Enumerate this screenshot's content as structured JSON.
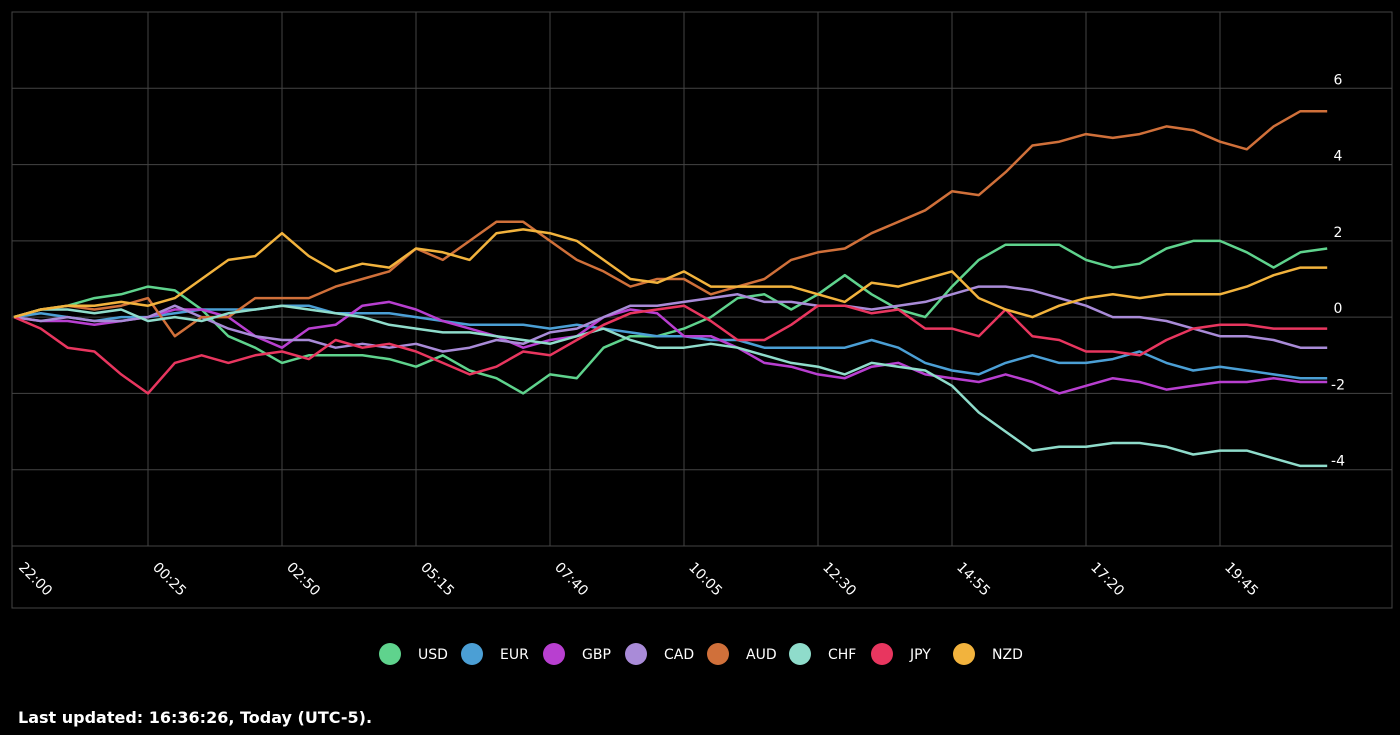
{
  "chart_data": {
    "type": "line",
    "categories": [
      "22:00",
      null,
      null,
      null,
      null,
      "00:25",
      null,
      null,
      null,
      null,
      "02:50",
      null,
      null,
      null,
      null,
      "05:15",
      null,
      null,
      null,
      null,
      "07:40",
      null,
      null,
      null,
      null,
      "10:05",
      null,
      null,
      null,
      null,
      "12:30",
      null,
      null,
      null,
      null,
      "14:55",
      null,
      null,
      null,
      null,
      "17:20",
      null,
      null,
      null,
      null,
      "19:45",
      null,
      null,
      null,
      null
    ],
    "ylim": [
      -6,
      8
    ],
    "yticks": [
      -4,
      -2,
      0,
      2,
      4,
      6
    ],
    "grid": true,
    "series": [
      {
        "name": "USD",
        "color": "#5fd38d",
        "values": [
          0,
          0.2,
          0.3,
          0.5,
          0.6,
          0.8,
          0.7,
          0.2,
          -0.5,
          -0.8,
          -1.2,
          -1,
          -1,
          -1,
          -1.1,
          -1.3,
          -1.0,
          -1.4,
          -1.6,
          -2,
          -1.5,
          -1.6,
          -0.8,
          -0.5,
          -0.5,
          -0.3,
          0,
          0.5,
          0.6,
          0.2,
          0.6,
          1.1,
          0.6,
          0.2,
          0,
          0.8,
          1.5,
          1.9,
          1.9,
          1.9,
          1.5,
          1.3,
          1.4,
          1.8,
          2.0,
          2.0,
          1.7,
          1.3,
          1.7,
          1.8
        ]
      },
      {
        "name": "EUR",
        "color": "#4b9fd5",
        "values": [
          0,
          0.1,
          0,
          -0.1,
          0,
          0,
          0.1,
          0.2,
          0.2,
          0.2,
          0.3,
          0.3,
          0.1,
          0.1,
          0.1,
          0,
          -0.1,
          -0.2,
          -0.2,
          -0.2,
          -0.3,
          -0.2,
          -0.3,
          -0.4,
          -0.5,
          -0.5,
          -0.6,
          -0.6,
          -0.8,
          -0.8,
          -0.8,
          -0.8,
          -0.6,
          -0.8,
          -1.2,
          -1.4,
          -1.5,
          -1.2,
          -1.0,
          -1.2,
          -1.2,
          -1.1,
          -0.9,
          -1.2,
          -1.4,
          -1.3,
          -1.4,
          -1.5,
          -1.6,
          -1.6
        ]
      },
      {
        "name": "GBP",
        "color": "#b83fd0",
        "values": [
          0,
          -0.1,
          -0.1,
          -0.2,
          -0.1,
          0,
          0.2,
          0.2,
          0,
          -0.5,
          -0.8,
          -0.3,
          -0.2,
          0.3,
          0.4,
          0.2,
          -0.1,
          -0.3,
          -0.5,
          -0.8,
          -0.6,
          -0.5,
          0,
          0.2,
          0.1,
          -0.5,
          -0.5,
          -0.8,
          -1.2,
          -1.3,
          -1.5,
          -1.6,
          -1.3,
          -1.2,
          -1.5,
          -1.6,
          -1.7,
          -1.5,
          -1.7,
          -2.0,
          -1.8,
          -1.6,
          -1.7,
          -1.9,
          -1.8,
          -1.7,
          -1.7,
          -1.6,
          -1.7,
          -1.7
        ]
      },
      {
        "name": "CAD",
        "color": "#a98bd8",
        "values": [
          0,
          -0.1,
          0,
          -0.1,
          -0.1,
          0,
          0.3,
          0,
          -0.3,
          -0.5,
          -0.6,
          -0.6,
          -0.8,
          -0.7,
          -0.8,
          -0.7,
          -0.9,
          -0.8,
          -0.6,
          -0.7,
          -0.4,
          -0.3,
          0,
          0.3,
          0.3,
          0.4,
          0.5,
          0.6,
          0.4,
          0.4,
          0.3,
          0.3,
          0.2,
          0.3,
          0.4,
          0.6,
          0.8,
          0.8,
          0.7,
          0.5,
          0.3,
          0,
          0,
          -0.1,
          -0.3,
          -0.5,
          -0.5,
          -0.6,
          -0.8,
          -0.8
        ]
      },
      {
        "name": "AUD",
        "color": "#d0703a",
        "values": [
          0,
          0.2,
          0.3,
          0.2,
          0.3,
          0.5,
          -0.5,
          0,
          0,
          0.5,
          0.5,
          0.5,
          0.8,
          1.0,
          1.2,
          1.8,
          1.5,
          2.0,
          2.5,
          2.5,
          2.0,
          1.5,
          1.2,
          0.8,
          1.0,
          1.0,
          0.6,
          0.8,
          1.0,
          1.5,
          1.7,
          1.8,
          2.2,
          2.5,
          2.8,
          3.3,
          3.2,
          3.8,
          4.5,
          4.6,
          4.8,
          4.7,
          4.8,
          5.0,
          4.9,
          4.6,
          4.4,
          5.0,
          5.4,
          5.4
        ]
      },
      {
        "name": "CHF",
        "color": "#8fdccb",
        "values": [
          0,
          0.2,
          0.2,
          0.1,
          0.2,
          -0.1,
          0,
          -0.1,
          0.1,
          0.2,
          0.3,
          0.2,
          0.1,
          0,
          -0.2,
          -0.3,
          -0.4,
          -0.4,
          -0.5,
          -0.6,
          -0.7,
          -0.5,
          -0.3,
          -0.6,
          -0.8,
          -0.8,
          -0.7,
          -0.8,
          -1,
          -1.2,
          -1.3,
          -1.5,
          -1.2,
          -1.3,
          -1.4,
          -1.8,
          -2.5,
          -3,
          -3.5,
          -3.4,
          -3.4,
          -3.3,
          -3.3,
          -3.4,
          -3.6,
          -3.5,
          -3.5,
          -3.7,
          -3.9,
          -3.9
        ]
      },
      {
        "name": "JPY",
        "color": "#e8365f",
        "values": [
          0,
          -0.3,
          -0.8,
          -0.9,
          -1.5,
          -2.0,
          -1.2,
          -1.0,
          -1.2,
          -1.0,
          -0.9,
          -1.1,
          -0.6,
          -0.8,
          -0.7,
          -0.9,
          -1.2,
          -1.5,
          -1.3,
          -0.9,
          -1.0,
          -0.6,
          -0.2,
          0.1,
          0.2,
          0.3,
          -0.1,
          -0.6,
          -0.6,
          -0.2,
          0.3,
          0.3,
          0.1,
          0.2,
          -0.3,
          -0.3,
          -0.5,
          0.2,
          -0.5,
          -0.6,
          -0.9,
          -0.9,
          -1.0,
          -0.6,
          -0.3,
          -0.2,
          -0.2,
          -0.3,
          -0.3,
          -0.3
        ]
      },
      {
        "name": "NZD",
        "color": "#f2b33d",
        "values": [
          0,
          0.2,
          0.3,
          0.3,
          0.4,
          0.3,
          0.5,
          1,
          1.5,
          1.6,
          2.2,
          1.6,
          1.2,
          1.4,
          1.3,
          1.8,
          1.7,
          1.5,
          2.2,
          2.3,
          2.2,
          2.0,
          1.5,
          1.0,
          0.9,
          1.2,
          0.8,
          0.8,
          0.8,
          0.8,
          0.6,
          0.4,
          0.9,
          0.8,
          1,
          1.2,
          0.5,
          0.2,
          0,
          0.3,
          0.5,
          0.6,
          0.5,
          0.6,
          0.6,
          0.6,
          0.8,
          1.1,
          1.3,
          1.3
        ]
      }
    ]
  },
  "footer_text": "Last updated: 16:36:26, Today (UTC-5)."
}
